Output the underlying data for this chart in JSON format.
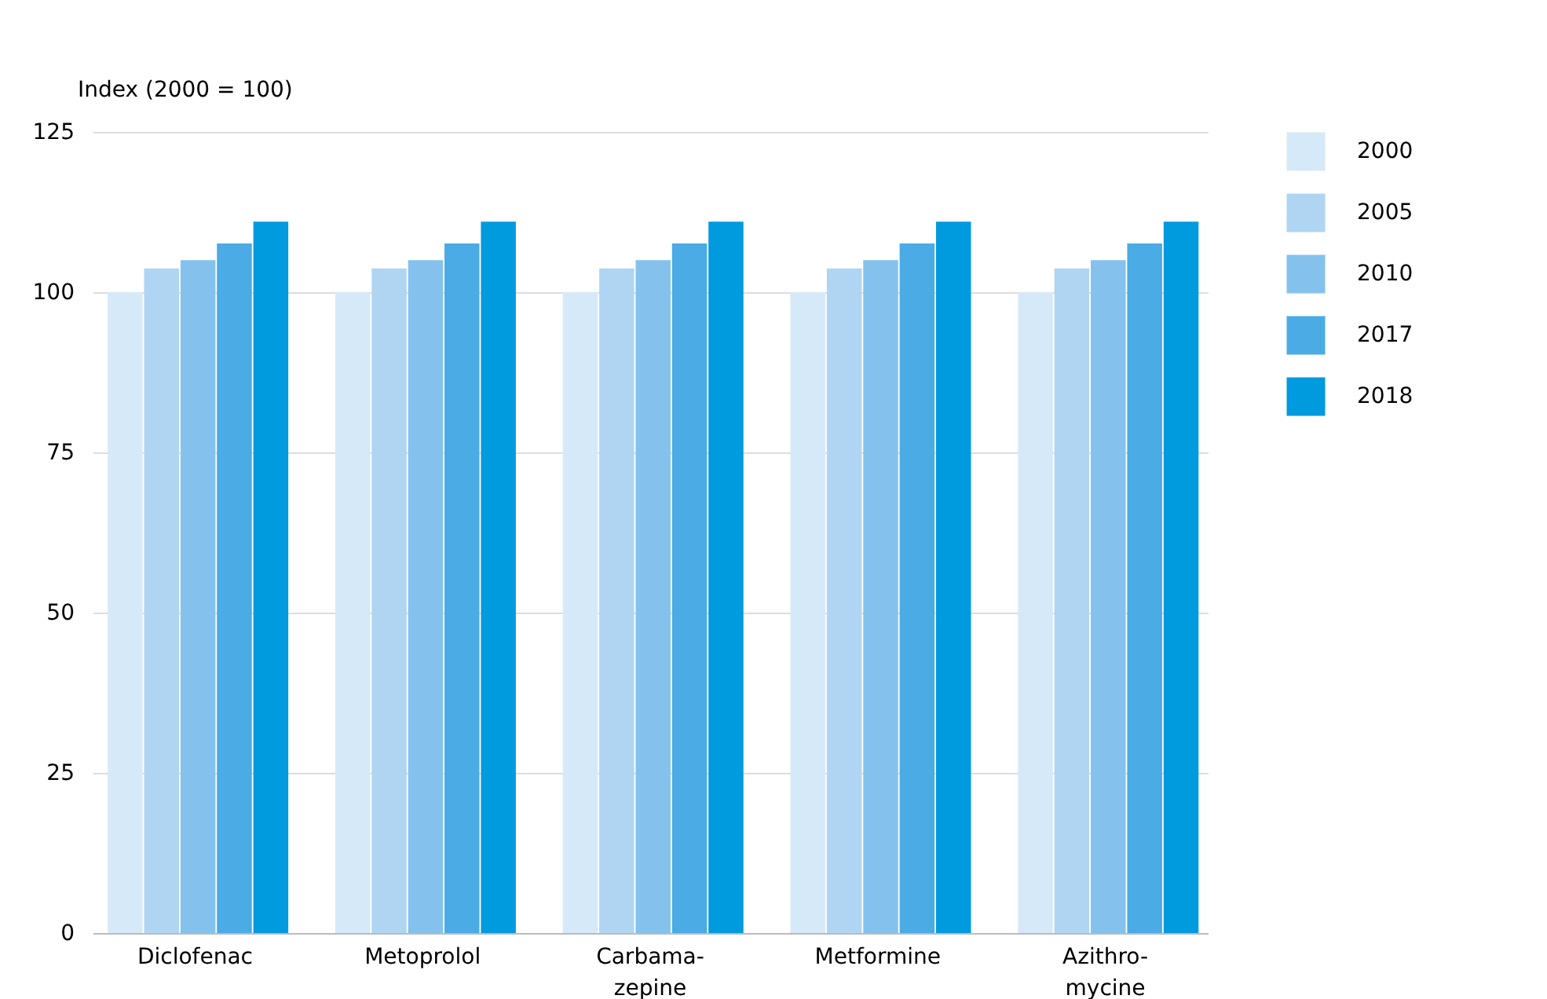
{
  "chart_data": {
    "type": "bar",
    "ylabel": "Index (2000 = 100)",
    "categories": [
      "Diclofenac",
      "Metoprolol",
      "Carbama-\nzepine",
      "Metformine",
      "Azithro-\nmycine"
    ],
    "series": [
      {
        "name": "2000",
        "color": "#d6e9f8",
        "values": [
          100,
          100,
          100,
          100,
          100
        ]
      },
      {
        "name": "2005",
        "color": "#afd5f2",
        "values": [
          103.7,
          103.7,
          103.7,
          103.7,
          103.7
        ]
      },
      {
        "name": "2010",
        "color": "#84c2ed",
        "values": [
          105,
          105,
          105,
          105,
          105
        ]
      },
      {
        "name": "2017",
        "color": "#4aabe5",
        "values": [
          107.6,
          107.6,
          107.6,
          107.6,
          107.6
        ]
      },
      {
        "name": "2018",
        "color": "#009ade",
        "values": [
          111,
          111,
          111,
          111,
          111
        ]
      }
    ],
    "ylim": [
      0,
      125
    ],
    "yticks": [
      0,
      25,
      50,
      75,
      100,
      125
    ],
    "grid": "y",
    "legend": "top right"
  }
}
